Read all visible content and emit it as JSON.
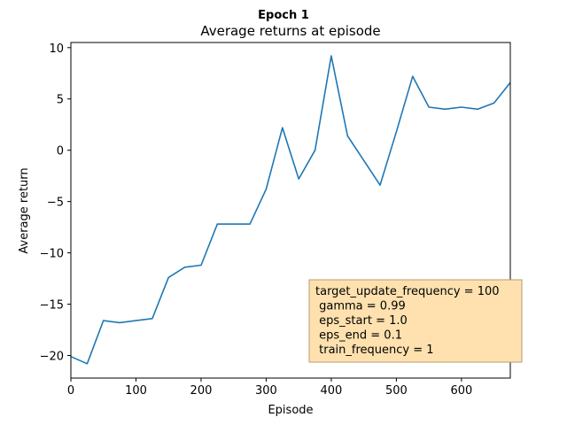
{
  "chart_data": {
    "type": "line",
    "suptitle": "Epoch 1",
    "title": "Average returns at episode",
    "xlabel": "Episode",
    "ylabel": "Average return",
    "xlim": [
      0,
      675
    ],
    "ylim": [
      -22.2,
      10.5
    ],
    "xticks": [
      0,
      100,
      200,
      300,
      400,
      500,
      600
    ],
    "yticks": [
      -20,
      -15,
      -10,
      -5,
      0,
      5,
      10
    ],
    "grid": false,
    "line_color": "#1f77b4",
    "series": [
      {
        "x": [
          0,
          25,
          50,
          75,
          100,
          125,
          150,
          175,
          200,
          225,
          250,
          275,
          300,
          325,
          350,
          375,
          400,
          425,
          450,
          475,
          500,
          525,
          550,
          575,
          600,
          625,
          650,
          675
        ],
        "values": [
          -20.1,
          -20.8,
          -16.6,
          -16.8,
          -16.6,
          -16.4,
          -12.4,
          -11.4,
          -11.2,
          -7.2,
          -7.2,
          -7.2,
          -3.8,
          2.2,
          -2.8,
          0.0,
          9.2,
          1.4,
          -1.0,
          -3.4,
          1.8,
          7.2,
          4.2,
          4.0,
          4.2,
          4.0,
          4.6,
          6.6
        ]
      }
    ],
    "annotation": {
      "lines": [
        "target_update_frequency = 100",
        " gamma = 0.99",
        " eps_start = 1.0",
        " eps_end = 0.1",
        " train_frequency = 1"
      ],
      "facecolor": "#fee1ae",
      "edgecolor": "#b49b73",
      "placement": "bottom-right"
    }
  }
}
